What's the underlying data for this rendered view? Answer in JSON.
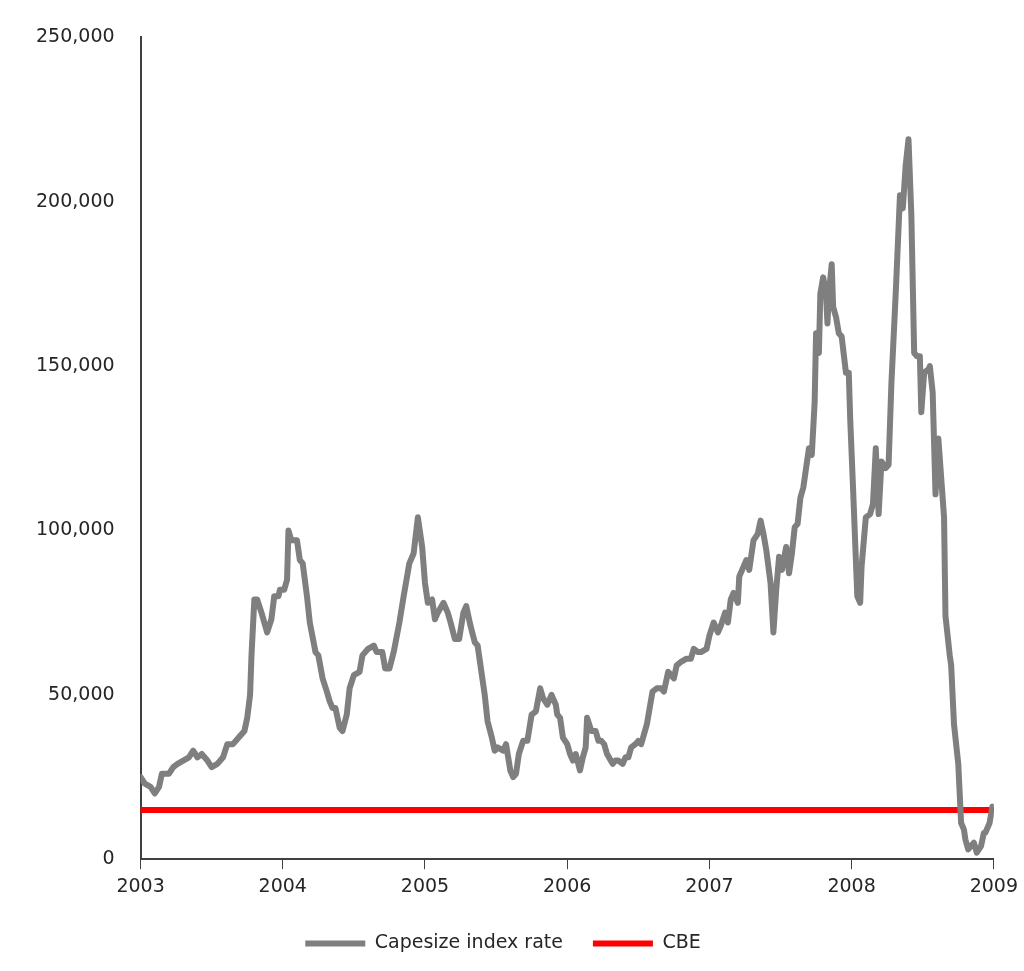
{
  "chart_data": {
    "type": "line",
    "xlim": [
      2003,
      2009
    ],
    "xticks": [
      2003,
      2004,
      2005,
      2006,
      2007,
      2008,
      2009
    ],
    "ylim": [
      0,
      250000
    ],
    "yticks": [
      {
        "value": 0,
        "label": "0"
      },
      {
        "value": 50000,
        "label": "50,000"
      },
      {
        "value": 100000,
        "label": "100,000"
      },
      {
        "value": 150000,
        "label": "150,000"
      },
      {
        "value": 200000,
        "label": "200,000"
      },
      {
        "value": 250000,
        "label": "250,000"
      }
    ],
    "grid": false,
    "legend": "bottom",
    "marker": "none",
    "line_style": "solid",
    "series": [
      {
        "name": "Capesize index rate",
        "color": "#7f7f7f",
        "x": [
          2003.0,
          2003.03,
          2003.07,
          2003.1,
          2003.13,
          2003.15,
          2003.2,
          2003.23,
          2003.26,
          2003.3,
          2003.34,
          2003.37,
          2003.4,
          2003.43,
          2003.47,
          2003.5,
          2003.54,
          2003.58,
          2003.61,
          2003.65,
          2003.69,
          2003.73,
          2003.75,
          2003.77,
          2003.78,
          2003.8,
          2003.82,
          2003.85,
          2003.89,
          2003.92,
          2003.94,
          2003.97,
          2003.98,
          2004.01,
          2004.03,
          2004.04,
          2004.06,
          2004.1,
          2004.12,
          2004.14,
          2004.17,
          2004.19,
          2004.23,
          2004.25,
          2004.28,
          2004.31,
          2004.33,
          2004.35,
          2004.37,
          2004.4,
          2004.42,
          2004.45,
          2004.47,
          2004.5,
          2004.54,
          2004.56,
          2004.6,
          2004.64,
          2004.66,
          2004.7,
          2004.72,
          2004.75,
          2004.78,
          2004.82,
          2004.85,
          2004.89,
          2004.92,
          2004.95,
          2004.98,
          2005.0,
          2005.02,
          2005.05,
          2005.07,
          2005.09,
          2005.13,
          2005.16,
          2005.18,
          2005.21,
          2005.24,
          2005.27,
          2005.29,
          2005.32,
          2005.35,
          2005.37,
          2005.39,
          2005.42,
          2005.44,
          2005.47,
          2005.49,
          2005.51,
          2005.55,
          2005.57,
          2005.6,
          2005.62,
          2005.64,
          2005.66,
          2005.69,
          2005.72,
          2005.75,
          2005.78,
          2005.81,
          2005.83,
          2005.86,
          2005.89,
          2005.92,
          2005.93,
          2005.95,
          2005.97,
          2006.0,
          2006.02,
          2006.04,
          2006.06,
          2006.09,
          2006.11,
          2006.13,
          2006.14,
          2006.17,
          2006.2,
          2006.22,
          2006.24,
          2006.26,
          2006.28,
          2006.32,
          2006.34,
          2006.36,
          2006.39,
          2006.41,
          2006.43,
          2006.45,
          2006.48,
          2006.5,
          2006.52,
          2006.56,
          2006.58,
          2006.6,
          2006.63,
          2006.66,
          2006.68,
          2006.71,
          2006.75,
          2006.77,
          2006.8,
          2006.84,
          2006.87,
          2006.89,
          2006.92,
          2006.94,
          2006.98,
          2007.0,
          2007.03,
          2007.06,
          2007.08,
          2007.11,
          2007.13,
          2007.15,
          2007.17,
          2007.2,
          2007.21,
          2007.24,
          2007.26,
          2007.28,
          2007.31,
          2007.34,
          2007.36,
          2007.38,
          2007.4,
          2007.43,
          2007.45,
          2007.47,
          2007.49,
          2007.51,
          2007.54,
          2007.56,
          2007.58,
          2007.6,
          2007.62,
          2007.64,
          2007.66,
          2007.7,
          2007.72,
          2007.74,
          2007.75,
          2007.77,
          2007.78,
          2007.8,
          2007.82,
          2007.83,
          2007.84,
          2007.86,
          2007.87,
          2007.89,
          2007.91,
          2007.93,
          2007.96,
          2007.98,
          2007.99,
          2008.01,
          2008.04,
          2008.06,
          2008.07,
          2008.1,
          2008.13,
          2008.15,
          2008.17,
          2008.19,
          2008.21,
          2008.24,
          2008.26,
          2008.28,
          2008.31,
          2008.34,
          2008.36,
          2008.38,
          2008.4,
          2008.42,
          2008.44,
          2008.46,
          2008.48,
          2008.49,
          2008.51,
          2008.54,
          2008.55,
          2008.57,
          2008.59,
          2008.61,
          2008.63,
          2008.65,
          2008.66,
          2008.69,
          2008.7,
          2008.72,
          2008.75,
          2008.77,
          2008.79,
          2008.8,
          2008.82,
          2008.84,
          2008.86,
          2008.88,
          2008.91,
          2008.93,
          2008.94,
          2008.97,
          2008.99
        ],
        "values": [
          25000,
          23000,
          22000,
          20000,
          22000,
          26000,
          26000,
          28000,
          29000,
          30000,
          31000,
          33000,
          31000,
          32000,
          30000,
          28000,
          29000,
          31000,
          35000,
          35000,
          37000,
          39000,
          43000,
          50000,
          62000,
          79000,
          79000,
          75000,
          69000,
          73000,
          80000,
          80000,
          82000,
          82000,
          85000,
          100000,
          97000,
          97000,
          91000,
          90000,
          80000,
          72000,
          63000,
          62000,
          55000,
          51000,
          48000,
          46000,
          46000,
          40000,
          39000,
          44000,
          52000,
          56000,
          57000,
          62000,
          64000,
          65000,
          63000,
          63000,
          58000,
          58000,
          63000,
          72000,
          80000,
          90000,
          93000,
          104000,
          95000,
          84000,
          78000,
          79000,
          73000,
          75000,
          78000,
          75000,
          72000,
          67000,
          67000,
          75000,
          77000,
          71000,
          66000,
          65000,
          59000,
          50000,
          42000,
          37000,
          33000,
          34000,
          33000,
          35000,
          27000,
          25000,
          26000,
          32000,
          36000,
          36000,
          44000,
          45000,
          52000,
          49000,
          47000,
          50000,
          47000,
          44000,
          43000,
          37000,
          35000,
          32000,
          30000,
          32000,
          27000,
          31000,
          34000,
          43000,
          39000,
          39000,
          36000,
          36000,
          35000,
          32000,
          29000,
          30000,
          30000,
          29000,
          31000,
          31000,
          34000,
          35000,
          36000,
          35000,
          41000,
          46000,
          51000,
          52000,
          52000,
          51000,
          57000,
          55000,
          59000,
          60000,
          61000,
          61000,
          64000,
          63000,
          63000,
          64000,
          68000,
          72000,
          69000,
          71000,
          75000,
          72000,
          79000,
          81000,
          78000,
          86000,
          89000,
          91000,
          88000,
          97000,
          99000,
          103000,
          99000,
          94000,
          84000,
          69000,
          82000,
          92000,
          88000,
          95000,
          87000,
          93000,
          101000,
          102000,
          110000,
          113000,
          125000,
          123000,
          139000,
          160000,
          154000,
          172000,
          177000,
          172000,
          163000,
          172000,
          181000,
          168000,
          165000,
          160000,
          159000,
          148000,
          148000,
          134000,
          113000,
          80000,
          78000,
          89000,
          104000,
          105000,
          108000,
          125000,
          105000,
          121000,
          119000,
          120000,
          145000,
          172000,
          202000,
          198000,
          211000,
          219000,
          196000,
          154000,
          153000,
          153000,
          136000,
          148000,
          149000,
          150000,
          142000,
          111000,
          128000,
          116000,
          104000,
          74000,
          62000,
          59000,
          41000,
          29000,
          11000,
          9000,
          6000,
          3000,
          4000,
          5000,
          2000,
          4000,
          8000,
          8000,
          11000,
          16000
        ]
      },
      {
        "name": "CBE",
        "color": "#ff0000",
        "x": [
          2003,
          2009
        ],
        "values": [
          15000,
          15000
        ]
      }
    ]
  }
}
